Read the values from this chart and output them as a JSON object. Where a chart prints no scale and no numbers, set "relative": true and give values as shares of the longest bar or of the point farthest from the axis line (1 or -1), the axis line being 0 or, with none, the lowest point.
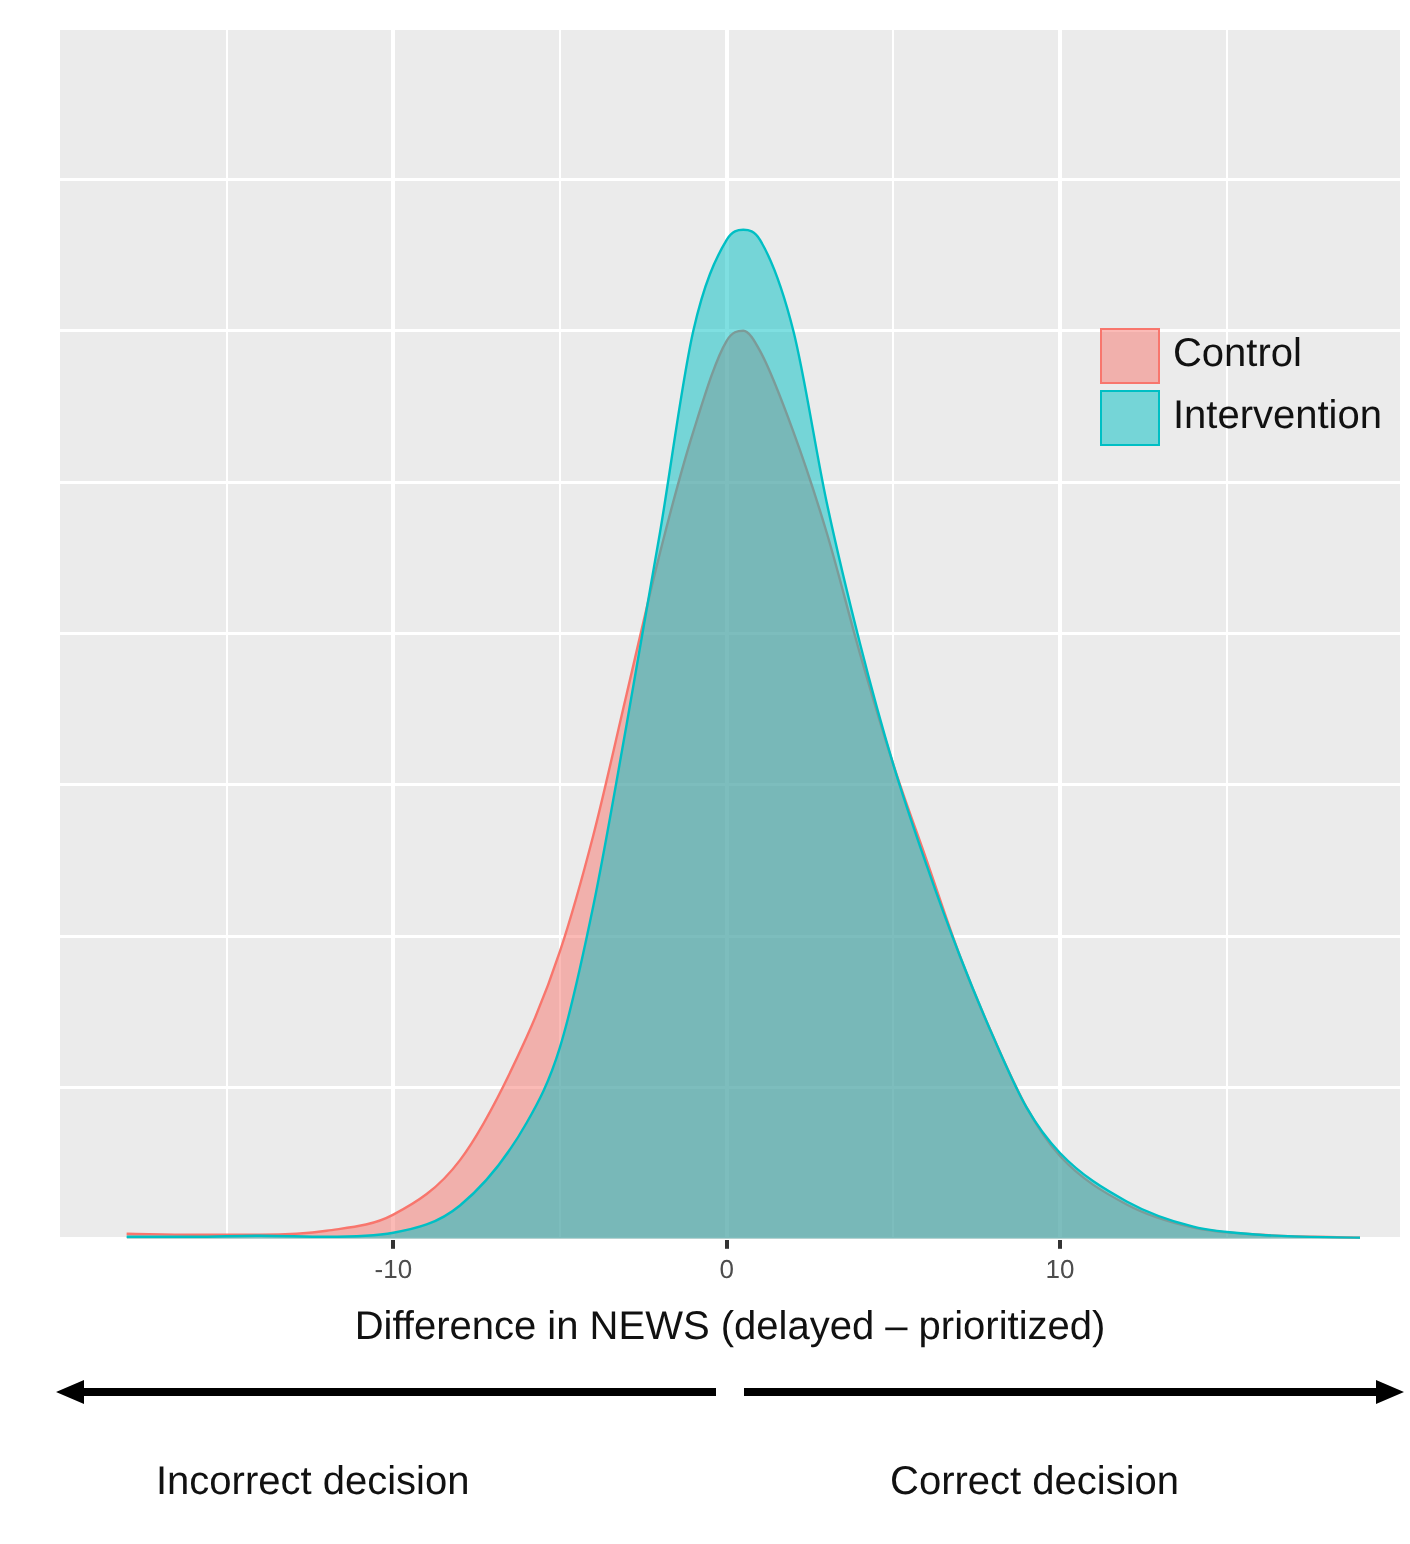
{
  "chart_data": {
    "type": "area",
    "relative": true,
    "xlabel": "Difference in NEWS (delayed – prioritized)",
    "x": [
      -18,
      -16,
      -14,
      -12,
      -10,
      -8,
      -6,
      -5,
      -4,
      -3,
      -2,
      -1,
      0,
      0.5,
      1,
      2,
      3,
      4,
      5,
      6,
      7,
      8,
      9,
      10,
      12,
      14,
      16,
      19
    ],
    "series": [
      {
        "name": "Control",
        "color": "#f8766d",
        "values": [
          0.005,
          0.004,
          0.004,
          0.008,
          0.024,
          0.078,
          0.2,
          0.285,
          0.4,
          0.54,
          0.68,
          0.8,
          0.89,
          0.9,
          0.88,
          0.8,
          0.7,
          0.58,
          0.47,
          0.375,
          0.28,
          0.2,
          0.13,
          0.082,
          0.034,
          0.011,
          0.004,
          0.001
        ]
      },
      {
        "name": "Intervention",
        "color": "#00bfc4",
        "values": [
          0.002,
          0.002,
          0.003,
          0.002,
          0.006,
          0.033,
          0.115,
          0.19,
          0.33,
          0.51,
          0.7,
          0.9,
          0.99,
          1,
          0.99,
          0.9,
          0.73,
          0.59,
          0.47,
          0.37,
          0.28,
          0.2,
          0.13,
          0.085,
          0.037,
          0.012,
          0.004,
          0.001
        ]
      }
    ],
    "xlim": [
      -20,
      20.2
    ],
    "xticks": [
      {
        "value": -15,
        "label": null
      },
      -10,
      {
        "value": -5,
        "label": null
      },
      0,
      {
        "value": 5,
        "label": null
      },
      10,
      {
        "value": 15,
        "label": null
      }
    ],
    "grid": true,
    "legend": "top right",
    "annotations": [
      "Incorrect decision",
      "Correct decision"
    ]
  }
}
